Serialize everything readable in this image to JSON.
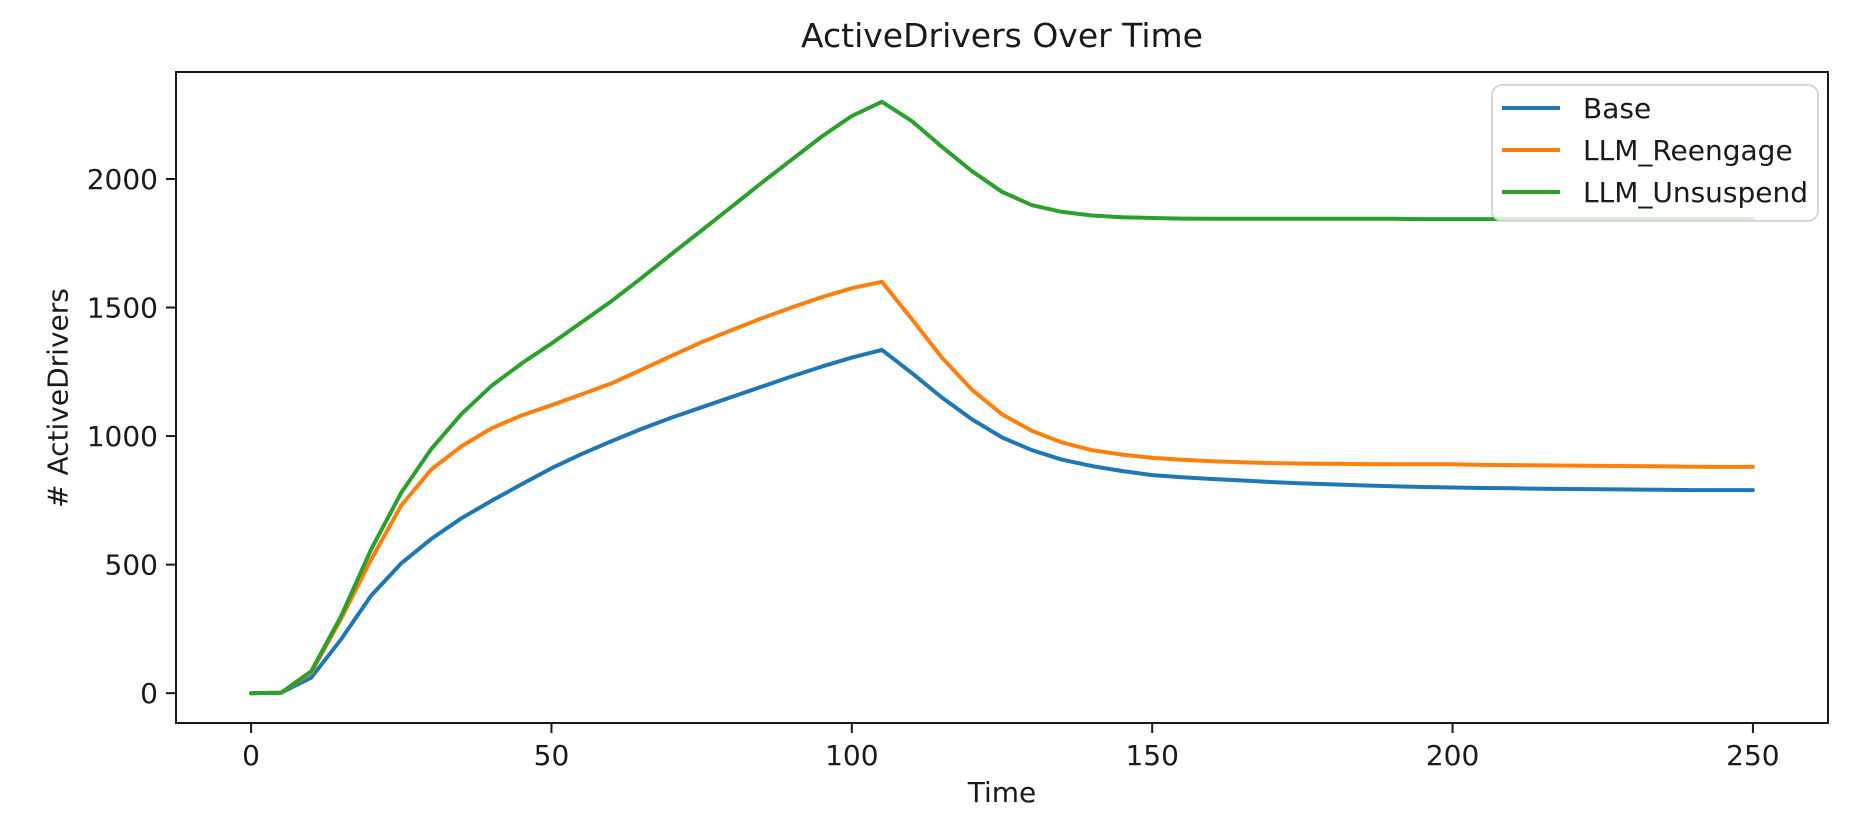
{
  "figure": {
    "background": "#ffffff",
    "text_color": "#1a1a1a",
    "spine_color": "#1a1a1a"
  },
  "chart_data": {
    "type": "line",
    "title": "ActiveDrivers Over Time",
    "xlabel": "Time",
    "ylabel": "# ActiveDrivers",
    "grid": false,
    "legend_position": "upper right",
    "legend_border_color": "#cccccc",
    "legend_background": "#ffffff",
    "xlim": [
      -12.5,
      262.5
    ],
    "ylim": [
      -116,
      2416
    ],
    "xticks": [
      0,
      50,
      100,
      150,
      200,
      250
    ],
    "yticks": [
      0,
      500,
      1000,
      1500,
      2000
    ],
    "x": [
      0,
      5,
      10,
      15,
      20,
      25,
      30,
      35,
      40,
      45,
      50,
      55,
      60,
      65,
      70,
      75,
      80,
      85,
      90,
      95,
      100,
      105,
      110,
      115,
      120,
      125,
      130,
      135,
      140,
      145,
      150,
      155,
      160,
      165,
      170,
      175,
      180,
      185,
      190,
      195,
      200,
      205,
      210,
      215,
      220,
      225,
      230,
      235,
      240,
      245,
      250
    ],
    "series": [
      {
        "name": "Base",
        "color": "#1f77b4",
        "values": [
          0,
          2,
          60,
          210,
          380,
          505,
          600,
          680,
          748,
          812,
          875,
          930,
          980,
          1028,
          1072,
          1112,
          1152,
          1192,
          1232,
          1270,
          1305,
          1335,
          1245,
          1150,
          1065,
          995,
          945,
          908,
          883,
          864,
          848,
          840,
          833,
          827,
          821,
          816,
          812,
          808,
          805,
          802,
          800,
          798,
          797,
          795,
          794,
          793,
          792,
          791,
          790,
          790,
          790
        ]
      },
      {
        "name": "LLM_Reengage",
        "color": "#ff7f0e",
        "values": [
          0,
          2,
          80,
          290,
          520,
          730,
          870,
          960,
          1030,
          1080,
          1120,
          1162,
          1205,
          1258,
          1312,
          1365,
          1412,
          1458,
          1500,
          1540,
          1575,
          1600,
          1455,
          1305,
          1180,
          1085,
          1020,
          975,
          945,
          928,
          915,
          908,
          902,
          898,
          895,
          893,
          892,
          891,
          890,
          890,
          890,
          888,
          887,
          886,
          885,
          884,
          883,
          882,
          881,
          880,
          880
        ]
      },
      {
        "name": "LLM_Unsuspend",
        "color": "#2ca02c",
        "values": [
          0,
          2,
          85,
          300,
          560,
          780,
          950,
          1085,
          1195,
          1282,
          1360,
          1442,
          1525,
          1615,
          1708,
          1800,
          1892,
          1985,
          2075,
          2165,
          2245,
          2300,
          2225,
          2125,
          2030,
          1950,
          1898,
          1872,
          1858,
          1851,
          1848,
          1846,
          1845,
          1845,
          1845,
          1845,
          1845,
          1845,
          1845,
          1844,
          1844,
          1844,
          1844,
          1844,
          1844,
          1844,
          1844,
          1844,
          1844,
          1844,
          1844
        ]
      }
    ]
  }
}
